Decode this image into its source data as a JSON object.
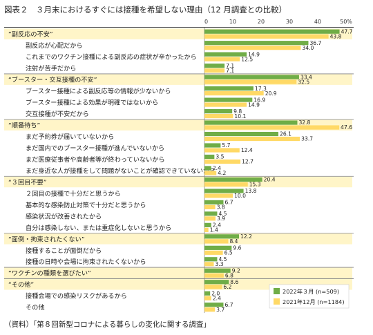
{
  "title": "図表２　３月末におけるすぐには接種を希望しない理由（12 月調査との比較）",
  "source": "（資料）「第８回新型コロナによる暮らしの変化に関する調査」",
  "chart_data": {
    "type": "bar",
    "orientation": "horizontal",
    "xlim": [
      0,
      50
    ],
    "ticks": [
      "0",
      "10",
      "20",
      "30",
      "40",
      "50%"
    ],
    "colors": {
      "march": "#70ad47",
      "december": "#ffd966",
      "group_row_bg": "#fff5c8",
      "divider": "#7f7f7f"
    },
    "legend_position": "bottom-right",
    "series": [
      {
        "name": "2022年３月 (n=509)"
      },
      {
        "name": "2021年12月 (n=1184)"
      }
    ],
    "rows": [
      {
        "label": "“副反応の不安”",
        "group": true,
        "v1": 47.7,
        "v2": 43.8
      },
      {
        "label": "副反応が心配だから",
        "group": false,
        "v1": 36.7,
        "v2": 34.0
      },
      {
        "label": "これまでのワクチン接種による副反応の症状が辛かったから",
        "group": false,
        "v1": 14.9,
        "v2": 12.5
      },
      {
        "label": "注射が苦手だから",
        "group": false,
        "v1": 7.1,
        "v2": 7.1
      },
      {
        "label": "“ブースター・交互接種の不安”",
        "group": true,
        "v1": 33.4,
        "v2": 32.5
      },
      {
        "label": "ブースター接種による副反応等の情報が少ないから",
        "group": false,
        "v1": 17.3,
        "v2": 20.9
      },
      {
        "label": "ブースター接種による効果が明確ではないから",
        "group": false,
        "v1": 16.9,
        "v2": 14.9
      },
      {
        "label": "交互接種が不安だから",
        "group": false,
        "v1": 9.8,
        "v2": 10.1
      },
      {
        "label": "“順番待ち”",
        "group": true,
        "v1": 32.8,
        "v2": 47.6
      },
      {
        "label": "まだ予約券が届いていないから",
        "group": false,
        "v1": 26.1,
        "v2": 33.7
      },
      {
        "label": "まだ国内でのブースター接種が進んでいないから",
        "group": false,
        "v1": 5.7,
        "v2": 12.4
      },
      {
        "label": "まだ医療従事者や高齢者等が終わっていないから",
        "group": false,
        "v1": 3.5,
        "v2": 12.7
      },
      {
        "label": "まだ身近な人が接種をして問題がないことが確認できていないから",
        "group": false,
        "v1": 2.4,
        "v2": 4.2
      },
      {
        "label": "“３回目不要”",
        "group": true,
        "v1": 20.4,
        "v2": 15.3
      },
      {
        "label": "２回目の接種で十分だと思うから",
        "group": false,
        "v1": 13.8,
        "v2": 10.0
      },
      {
        "label": "基本的な感染防止対策で十分だと思うから",
        "group": false,
        "v1": 6.7,
        "v2": 3.8
      },
      {
        "label": "感染状況が改善されたから",
        "group": false,
        "v1": 4.5,
        "v2": 3.9
      },
      {
        "label": "自分は感染しない、または重症化しないと思うから",
        "group": false,
        "v1": 2.4,
        "v2": 1.4
      },
      {
        "label": "“面倒・拘束されたくない”",
        "group": true,
        "v1": 12.2,
        "v2": 8.4
      },
      {
        "label": "接種することが面倒だから",
        "group": false,
        "v1": 9.6,
        "v2": 6.5
      },
      {
        "label": "接種の日時や会場に拘束されたくないから",
        "group": false,
        "v1": 4.5,
        "v2": 3.3
      },
      {
        "label": "“ワクチンの種類を選びたい”",
        "group": true,
        "v1": 9.2,
        "v2": 6.8
      },
      {
        "label": "“その他”",
        "group": true,
        "v1": 8.6,
        "v2": 6.2
      },
      {
        "label": "接種会場での感染リスクがあるから",
        "group": false,
        "v1": 2.0,
        "v2": 2.4
      },
      {
        "label": "その他",
        "group": false,
        "v1": 6.7,
        "v2": 3.7
      }
    ],
    "dividers_after": [
      3,
      7,
      12,
      17,
      20,
      21
    ]
  }
}
